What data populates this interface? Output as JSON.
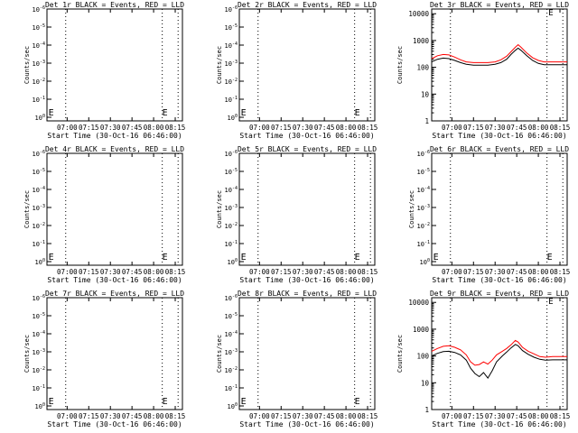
{
  "colors": {
    "events": "#000000",
    "lld": "#ff0000",
    "grid": "#000000"
  },
  "chart_data": [
    {
      "type": "line",
      "title": "Det 1r BLACK = Events, RED = LLD",
      "xlabel": "Start Time (30-Oct-16 06:46:00)",
      "ylabel": "Counts/sec",
      "x_ticks": [
        "07:00",
        "07:15",
        "07:30",
        "07:45",
        "08:00",
        "08:15"
      ],
      "y_scale": "log",
      "y_ticks": [
        "10^0",
        "10^-1",
        "10^-2",
        "10^-3",
        "10^-4",
        "10^-5",
        "10^-6"
      ],
      "vlines": [
        "06:59",
        "08:06",
        "08:17"
      ],
      "series": [],
      "markers": [
        {
          "x": "06:47",
          "label": "E"
        },
        {
          "x": "08:06",
          "label": "E"
        }
      ]
    },
    {
      "type": "line",
      "title": "Det 2r BLACK = Events, RED = LLD",
      "xlabel": "Start Time (30-Oct-16 06:46:00)",
      "ylabel": "Counts/sec",
      "x_ticks": [
        "07:00",
        "07:15",
        "07:30",
        "07:45",
        "08:00",
        "08:15"
      ],
      "y_scale": "log",
      "y_ticks": [
        "10^0",
        "10^-1",
        "10^-2",
        "10^-3",
        "10^-4",
        "10^-5",
        "10^-6"
      ],
      "vlines": [
        "06:59",
        "08:06",
        "08:17"
      ],
      "series": [],
      "markers": [
        {
          "x": "06:47",
          "label": "E"
        },
        {
          "x": "08:06",
          "label": "E"
        }
      ]
    },
    {
      "type": "line",
      "title": "Det 3r BLACK = Events, RED = LLD",
      "xlabel": "Start Time (30-Oct-16 06:46:00)",
      "ylabel": "Counts/sec",
      "x_ticks": [
        "07:00",
        "07:15",
        "07:30",
        "07:45",
        "08:00",
        "08:15"
      ],
      "y_scale": "log",
      "y_ticks": [
        "1",
        "10",
        "100",
        "1000",
        "10000"
      ],
      "vlines": [
        "06:59",
        "08:06",
        "08:17"
      ],
      "series": [
        {
          "color": "red",
          "x": [
            "06:46",
            "06:50",
            "06:54",
            "06:58",
            "07:02",
            "07:06",
            "07:10",
            "07:15",
            "07:20",
            "07:25",
            "07:30",
            "07:34",
            "07:38",
            "07:41",
            "07:44",
            "07:46",
            "07:48",
            "07:52",
            "07:56",
            "08:00",
            "08:04",
            "08:08",
            "08:12",
            "08:18",
            "08:20"
          ],
          "y": [
            210,
            270,
            300,
            290,
            240,
            190,
            160,
            150,
            150,
            150,
            160,
            190,
            260,
            380,
            560,
            700,
            560,
            340,
            230,
            180,
            160,
            160,
            160,
            160,
            160
          ]
        },
        {
          "color": "black",
          "x": [
            "06:46",
            "06:50",
            "06:54",
            "06:58",
            "07:02",
            "07:06",
            "07:10",
            "07:15",
            "07:20",
            "07:25",
            "07:30",
            "07:34",
            "07:38",
            "07:41",
            "07:44",
            "07:46",
            "07:48",
            "07:52",
            "07:56",
            "08:00",
            "08:04",
            "08:08",
            "08:12",
            "08:18",
            "08:20"
          ],
          "y": [
            160,
            200,
            220,
            210,
            180,
            150,
            130,
            120,
            120,
            120,
            130,
            150,
            200,
            300,
            430,
            520,
            430,
            270,
            180,
            140,
            125,
            125,
            125,
            125,
            125
          ]
        }
      ],
      "markers": [
        {
          "x": "08:07",
          "label": "E",
          "at_top": true
        }
      ]
    },
    {
      "type": "line",
      "title": "Det 4r BLACK = Events, RED = LLD",
      "xlabel": "Start Time (30-Oct-16 06:46:00)",
      "ylabel": "Counts/sec",
      "x_ticks": [
        "07:00",
        "07:15",
        "07:30",
        "07:45",
        "08:00",
        "08:15"
      ],
      "y_scale": "log",
      "y_ticks": [
        "10^0",
        "10^-1",
        "10^-2",
        "10^-3",
        "10^-4",
        "10^-5",
        "10^-6"
      ],
      "vlines": [
        "06:59",
        "08:06",
        "08:17"
      ],
      "series": [],
      "markers": [
        {
          "x": "06:47",
          "label": "E"
        },
        {
          "x": "08:06",
          "label": "E"
        }
      ]
    },
    {
      "type": "line",
      "title": "Det 5r BLACK = Events, RED = LLD",
      "xlabel": "Start Time (30-Oct-16 06:46:00)",
      "ylabel": "Counts/sec",
      "x_ticks": [
        "07:00",
        "07:15",
        "07:30",
        "07:45",
        "08:00",
        "08:15"
      ],
      "y_scale": "log",
      "y_ticks": [
        "10^0",
        "10^-1",
        "10^-2",
        "10^-3",
        "10^-4",
        "10^-5",
        "10^-6"
      ],
      "vlines": [
        "06:59",
        "08:06",
        "08:17"
      ],
      "series": [],
      "markers": [
        {
          "x": "06:47",
          "label": "E"
        },
        {
          "x": "08:06",
          "label": "E"
        }
      ]
    },
    {
      "type": "line",
      "title": "Det 6r BLACK = Events, RED = LLD",
      "xlabel": "Start Time (30-Oct-16 06:46:00)",
      "ylabel": "Counts/sec",
      "x_ticks": [
        "07:00",
        "07:15",
        "07:30",
        "07:45",
        "08:00",
        "08:15"
      ],
      "y_scale": "log",
      "y_ticks": [
        "10^0",
        "10^-1",
        "10^-2",
        "10^-3",
        "10^-4",
        "10^-5",
        "10^-6"
      ],
      "vlines": [
        "06:59",
        "08:06",
        "08:17"
      ],
      "series": [],
      "markers": [
        {
          "x": "06:47",
          "label": "E"
        },
        {
          "x": "08:06",
          "label": "E"
        }
      ]
    },
    {
      "type": "line",
      "title": "Det 7r BLACK = Events, RED = LLD",
      "xlabel": "Start Time (30-Oct-16 06:46:00)",
      "ylabel": "Counts/sec",
      "x_ticks": [
        "07:00",
        "07:15",
        "07:30",
        "07:45",
        "08:00",
        "08:15"
      ],
      "y_scale": "log",
      "y_ticks": [
        "10^0",
        "10^-1",
        "10^-2",
        "10^-3",
        "10^-4",
        "10^-5",
        "10^-6"
      ],
      "vlines": [
        "06:59",
        "08:06",
        "08:17"
      ],
      "series": [],
      "markers": [
        {
          "x": "06:47",
          "label": "E"
        },
        {
          "x": "08:06",
          "label": "E"
        }
      ]
    },
    {
      "type": "line",
      "title": "Det 8r BLACK = Events, RED = LLD",
      "xlabel": "Start Time (30-Oct-16 06:46:00)",
      "ylabel": "Counts/sec",
      "x_ticks": [
        "07:00",
        "07:15",
        "07:30",
        "07:45",
        "08:00",
        "08:15"
      ],
      "y_scale": "log",
      "y_ticks": [
        "10^0",
        "10^-1",
        "10^-2",
        "10^-3",
        "10^-4",
        "10^-5",
        "10^-6"
      ],
      "vlines": [
        "06:59",
        "08:06",
        "08:17"
      ],
      "series": [],
      "markers": [
        {
          "x": "06:47",
          "label": "E"
        },
        {
          "x": "08:06",
          "label": "E"
        }
      ]
    },
    {
      "type": "line",
      "title": "Det 9r BLACK = Events, RED = LLD",
      "xlabel": "Start Time (30-Oct-16 06:46:00)",
      "ylabel": "Counts/sec",
      "x_ticks": [
        "07:00",
        "07:15",
        "07:30",
        "07:45",
        "08:00",
        "08:15"
      ],
      "y_scale": "log",
      "y_ticks": [
        "1",
        "10",
        "100",
        "1000",
        "10000"
      ],
      "vlines": [
        "06:59",
        "08:06",
        "08:17"
      ],
      "series": [
        {
          "color": "red",
          "x": [
            "06:46",
            "06:50",
            "06:54",
            "06:58",
            "07:02",
            "07:06",
            "07:10",
            "07:13",
            "07:16",
            "07:19",
            "07:22",
            "07:25",
            "07:28",
            "07:31",
            "07:35",
            "07:38",
            "07:41",
            "07:44",
            "07:46",
            "07:49",
            "07:53",
            "07:57",
            "08:01",
            "08:05",
            "08:10",
            "08:15",
            "08:20"
          ],
          "y": [
            150,
            190,
            230,
            240,
            210,
            170,
            110,
            60,
            45,
            48,
            60,
            50,
            70,
            110,
            150,
            190,
            260,
            380,
            330,
            210,
            150,
            120,
            95,
            90,
            95,
            95,
            95
          ]
        },
        {
          "color": "black",
          "x": [
            "06:46",
            "06:50",
            "06:54",
            "06:58",
            "07:02",
            "07:06",
            "07:10",
            "07:13",
            "07:16",
            "07:19",
            "07:22",
            "07:25",
            "07:28",
            "07:31",
            "07:35",
            "07:38",
            "07:41",
            "07:44",
            "07:46",
            "07:49",
            "07:53",
            "07:57",
            "08:01",
            "08:05",
            "08:10",
            "08:15",
            "08:20"
          ],
          "y": [
            100,
            125,
            145,
            150,
            135,
            110,
            70,
            35,
            22,
            17,
            24,
            15,
            28,
            60,
            100,
            140,
            200,
            270,
            240,
            160,
            115,
            90,
            75,
            70,
            72,
            72,
            72
          ]
        }
      ],
      "markers": [
        {
          "x": "08:07",
          "label": "E",
          "at_top": true
        }
      ]
    }
  ]
}
